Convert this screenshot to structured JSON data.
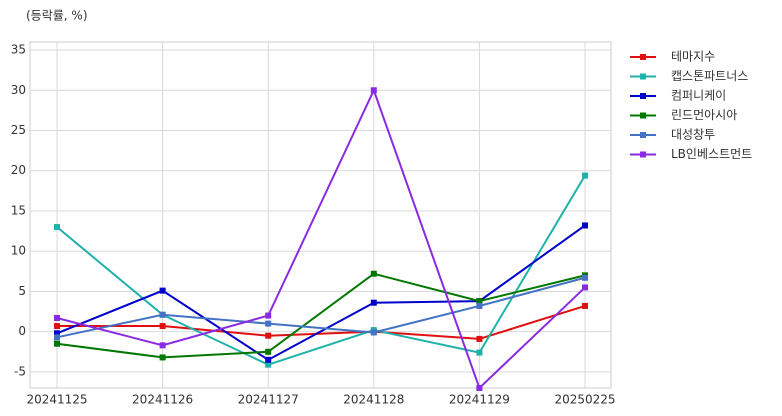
{
  "chart_data": {
    "type": "line",
    "title": "(등락률, %)",
    "categories": [
      "20241125",
      "20241126",
      "20241127",
      "20241128",
      "20241129",
      "20250225"
    ],
    "ylim": [
      -7,
      36
    ],
    "yticks": [
      -5,
      0,
      5,
      10,
      15,
      20,
      25,
      30,
      35
    ],
    "grid": true,
    "legend": "outside-right",
    "series": [
      {
        "name": "테마지수",
        "color": "#e01010",
        "values": [
          0.7,
          0.7,
          -0.5,
          0,
          -0.9,
          3.2
        ]
      },
      {
        "name": "캡스톤파트너스",
        "color": "#20b2aa",
        "values": [
          13,
          2.1,
          -4.1,
          0.2,
          -2.6,
          19.4
        ]
      },
      {
        "name": "컴퍼니케이",
        "color": "#0000cc",
        "values": [
          -0.2,
          5.1,
          -3.5,
          3.6,
          3.8,
          13.2
        ]
      },
      {
        "name": "린드먼아시아",
        "color": "#007700",
        "values": [
          -1.5,
          -3.2,
          -2.5,
          7.2,
          3.8,
          7.0
        ]
      },
      {
        "name": "대성창투",
        "color": "#4472c4",
        "values": [
          -0.7,
          2.1,
          1.0,
          -0.1,
          3.2,
          6.7
        ]
      },
      {
        "name": "LB인베스트먼트",
        "color": "#8a2be2",
        "values": [
          1.7,
          -1.7,
          2.0,
          30,
          -7,
          5.5
        ]
      }
    ]
  }
}
